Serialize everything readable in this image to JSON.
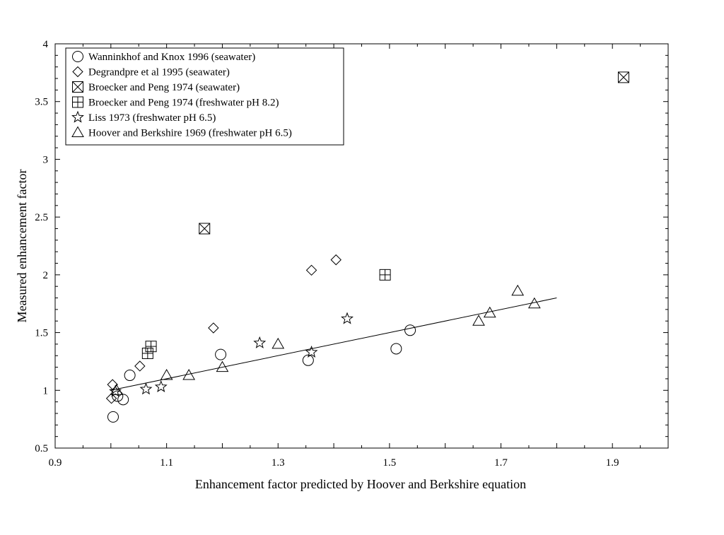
{
  "chart_data": {
    "type": "scatter",
    "title": "",
    "xlabel": "Enhancement factor predicted by Hoover and Berkshire equation",
    "ylabel": "Measured enhancement factor",
    "xlim": [
      0.9,
      2.0
    ],
    "ylim": [
      0.5,
      4.0
    ],
    "x_ticks": [
      0.9,
      1.1,
      1.3,
      1.5,
      1.7,
      1.9
    ],
    "x_tick_labels": [
      "0.9",
      "1.1",
      "1.3",
      "1.5",
      "1.7",
      "1.9"
    ],
    "y_ticks": [
      0.5,
      1,
      1.5,
      2,
      2.5,
      3,
      3.5,
      4
    ],
    "y_tick_labels": [
      "0.5",
      "1",
      "1.5",
      "2",
      "2.5",
      "3",
      "3.5",
      "4"
    ],
    "grid": false,
    "legend_position": "top-left",
    "series": [
      {
        "name": "Wanninkhof and Knox 1996 (seawater)",
        "marker": "circle",
        "x": [
          1.004,
          1.012,
          1.022,
          1.034,
          1.197,
          1.354,
          1.512,
          1.537
        ],
        "y": [
          0.77,
          0.95,
          0.92,
          1.13,
          1.31,
          1.26,
          1.36,
          1.52
        ]
      },
      {
        "name": "Degrandpre et al 1995 (seawater)",
        "marker": "diamond",
        "x": [
          1.001,
          1.003,
          1.052,
          1.184,
          1.36,
          1.404
        ],
        "y": [
          0.93,
          1.05,
          1.21,
          1.54,
          2.04,
          2.13
        ]
      },
      {
        "name": "Broecker and Peng 1974 (seawater)",
        "marker": "square-x",
        "x": [
          1.168,
          1.92
        ],
        "y": [
          2.4,
          3.71
        ]
      },
      {
        "name": "Broecker and Peng 1974 (freshwater pH 8.2)",
        "marker": "square-plus",
        "x": [
          1.066,
          1.072,
          1.492
        ],
        "y": [
          1.32,
          1.38,
          2.0
        ]
      },
      {
        "name": "Liss 1973 (freshwater pH 6.5)",
        "marker": "star",
        "x": [
          1.008,
          1.063,
          1.09,
          1.267,
          1.36,
          1.424
        ],
        "y": [
          0.99,
          1.01,
          1.03,
          1.41,
          1.33,
          1.62
        ]
      },
      {
        "name": "Hoover and Berkshire 1969 (freshwater pH 6.5)",
        "marker": "triangle",
        "x": [
          1.01,
          1.1,
          1.14,
          1.2,
          1.3,
          1.66,
          1.68,
          1.73,
          1.76
        ],
        "y": [
          1.0,
          1.13,
          1.13,
          1.2,
          1.4,
          1.6,
          1.67,
          1.86,
          1.75
        ]
      }
    ],
    "fit_line": {
      "x": [
        1.0,
        1.8
      ],
      "y": [
        1.0,
        1.8
      ]
    }
  }
}
